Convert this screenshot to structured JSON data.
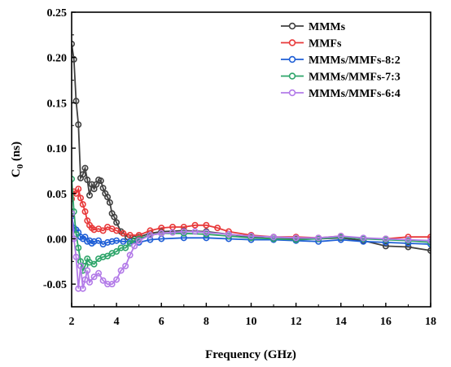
{
  "chart_data": {
    "type": "line",
    "title": "",
    "xlabel": "Frequency (GHz)",
    "ylabel_main": "C",
    "ylabel_sub": "0",
    "ylabel_unit": " (ns)",
    "xlim": [
      2,
      18
    ],
    "ylim": [
      -0.075,
      0.25
    ],
    "xticks": [
      "2",
      "4",
      "6",
      "8",
      "10",
      "12",
      "14",
      "16",
      "18"
    ],
    "yticks": [
      "-0.05",
      "0.00",
      "0.05",
      "0.10",
      "0.15",
      "0.20",
      "0.25"
    ],
    "grid": false,
    "legend_position": "top-right",
    "series": [
      {
        "name": "MMMs",
        "color": "#404040",
        "points": [
          [
            2.0,
            0.215
          ],
          [
            2.1,
            0.198
          ],
          [
            2.2,
            0.152
          ],
          [
            2.3,
            0.126
          ],
          [
            2.4,
            0.067
          ],
          [
            2.5,
            0.071
          ],
          [
            2.6,
            0.078
          ],
          [
            2.7,
            0.065
          ],
          [
            2.8,
            0.048
          ],
          [
            2.9,
            0.06
          ],
          [
            3.0,
            0.055
          ],
          [
            3.1,
            0.06
          ],
          [
            3.2,
            0.065
          ],
          [
            3.3,
            0.064
          ],
          [
            3.4,
            0.056
          ],
          [
            3.5,
            0.05
          ],
          [
            3.6,
            0.046
          ],
          [
            3.7,
            0.04
          ],
          [
            3.8,
            0.028
          ],
          [
            3.9,
            0.024
          ],
          [
            4.0,
            0.018
          ],
          [
            4.2,
            0.008
          ],
          [
            4.5,
            0.002
          ],
          [
            4.8,
            0.0
          ],
          [
            5.0,
            0.002
          ],
          [
            5.5,
            0.006
          ],
          [
            6.0,
            0.008
          ],
          [
            7.0,
            0.009
          ],
          [
            8.0,
            0.008
          ],
          [
            9.0,
            0.005
          ],
          [
            10.0,
            0.002
          ],
          [
            11.0,
            0.0
          ],
          [
            12.0,
            0.0
          ],
          [
            13.0,
            0.0
          ],
          [
            14.0,
            0.001
          ],
          [
            15.0,
            -0.002
          ],
          [
            16.0,
            -0.008
          ],
          [
            17.0,
            -0.009
          ],
          [
            18.0,
            -0.013
          ]
        ]
      },
      {
        "name": "MMFs",
        "color": "#e8393a",
        "points": [
          [
            2.0,
            0.044
          ],
          [
            2.1,
            0.052
          ],
          [
            2.2,
            0.05
          ],
          [
            2.3,
            0.055
          ],
          [
            2.4,
            0.045
          ],
          [
            2.5,
            0.038
          ],
          [
            2.6,
            0.03
          ],
          [
            2.7,
            0.02
          ],
          [
            2.8,
            0.015
          ],
          [
            2.9,
            0.012
          ],
          [
            3.0,
            0.01
          ],
          [
            3.2,
            0.011
          ],
          [
            3.4,
            0.009
          ],
          [
            3.6,
            0.013
          ],
          [
            3.8,
            0.011
          ],
          [
            4.0,
            0.009
          ],
          [
            4.3,
            0.006
          ],
          [
            4.6,
            0.004
          ],
          [
            5.0,
            0.004
          ],
          [
            5.5,
            0.009
          ],
          [
            6.0,
            0.012
          ],
          [
            6.5,
            0.013
          ],
          [
            7.0,
            0.013
          ],
          [
            7.5,
            0.015
          ],
          [
            8.0,
            0.015
          ],
          [
            8.5,
            0.012
          ],
          [
            9.0,
            0.008
          ],
          [
            10.0,
            0.004
          ],
          [
            11.0,
            0.002
          ],
          [
            12.0,
            0.002
          ],
          [
            13.0,
            0.001
          ],
          [
            14.0,
            0.003
          ],
          [
            15.0,
            0.0
          ],
          [
            16.0,
            0.0
          ],
          [
            17.0,
            0.002
          ],
          [
            18.0,
            0.002
          ]
        ]
      },
      {
        "name": "MMMs/MMFs-8:2",
        "color": "#1f5fd6",
        "points": [
          [
            2.0,
            0.025
          ],
          [
            2.1,
            0.012
          ],
          [
            2.2,
            0.01
          ],
          [
            2.3,
            0.007
          ],
          [
            2.4,
            0.002
          ],
          [
            2.5,
            0.0
          ],
          [
            2.6,
            0.002
          ],
          [
            2.7,
            -0.003
          ],
          [
            2.8,
            -0.002
          ],
          [
            2.9,
            -0.005
          ],
          [
            3.0,
            -0.003
          ],
          [
            3.2,
            -0.002
          ],
          [
            3.4,
            -0.006
          ],
          [
            3.6,
            -0.004
          ],
          [
            3.8,
            -0.003
          ],
          [
            4.0,
            -0.002
          ],
          [
            4.3,
            -0.003
          ],
          [
            4.6,
            -0.003
          ],
          [
            5.0,
            -0.004
          ],
          [
            5.5,
            -0.001
          ],
          [
            6.0,
            0.0
          ],
          [
            7.0,
            0.001
          ],
          [
            8.0,
            0.001
          ],
          [
            9.0,
            0.0
          ],
          [
            10.0,
            -0.001
          ],
          [
            11.0,
            -0.001
          ],
          [
            12.0,
            -0.002
          ],
          [
            13.0,
            -0.003
          ],
          [
            14.0,
            -0.001
          ],
          [
            15.0,
            -0.003
          ],
          [
            16.0,
            -0.004
          ],
          [
            17.0,
            -0.005
          ],
          [
            18.0,
            -0.006
          ]
        ]
      },
      {
        "name": "MMMs/MMFs-7:3",
        "color": "#2ea56a",
        "points": [
          [
            2.0,
            0.066
          ],
          [
            2.1,
            0.03
          ],
          [
            2.2,
            0.005
          ],
          [
            2.3,
            -0.01
          ],
          [
            2.4,
            -0.025
          ],
          [
            2.5,
            -0.035
          ],
          [
            2.6,
            -0.03
          ],
          [
            2.7,
            -0.022
          ],
          [
            2.8,
            -0.026
          ],
          [
            3.0,
            -0.028
          ],
          [
            3.2,
            -0.022
          ],
          [
            3.4,
            -0.02
          ],
          [
            3.6,
            -0.019
          ],
          [
            3.8,
            -0.016
          ],
          [
            4.0,
            -0.014
          ],
          [
            4.2,
            -0.01
          ],
          [
            4.4,
            -0.01
          ],
          [
            4.6,
            -0.005
          ],
          [
            4.8,
            -0.002
          ],
          [
            5.0,
            0.0
          ],
          [
            5.5,
            0.004
          ],
          [
            6.0,
            0.006
          ],
          [
            7.0,
            0.006
          ],
          [
            8.0,
            0.005
          ],
          [
            9.0,
            0.003
          ],
          [
            10.0,
            0.001
          ],
          [
            11.0,
            0.0
          ],
          [
            12.0,
            -0.001
          ],
          [
            13.0,
            0.0
          ],
          [
            14.0,
            0.002
          ],
          [
            15.0,
            0.0
          ],
          [
            16.0,
            -0.001
          ],
          [
            17.0,
            -0.002
          ],
          [
            18.0,
            -0.004
          ]
        ]
      },
      {
        "name": "MMMs/MMFs-6:4",
        "color": "#b37be8",
        "points": [
          [
            2.0,
            0.028
          ],
          [
            2.1,
            0.0
          ],
          [
            2.2,
            -0.02
          ],
          [
            2.3,
            -0.055
          ],
          [
            2.4,
            -0.03
          ],
          [
            2.5,
            -0.055
          ],
          [
            2.6,
            -0.045
          ],
          [
            2.7,
            -0.035
          ],
          [
            2.8,
            -0.048
          ],
          [
            3.0,
            -0.042
          ],
          [
            3.2,
            -0.038
          ],
          [
            3.4,
            -0.046
          ],
          [
            3.6,
            -0.05
          ],
          [
            3.8,
            -0.05
          ],
          [
            4.0,
            -0.045
          ],
          [
            4.2,
            -0.035
          ],
          [
            4.4,
            -0.03
          ],
          [
            4.6,
            -0.018
          ],
          [
            4.8,
            -0.008
          ],
          [
            5.0,
            -0.002
          ],
          [
            5.5,
            0.004
          ],
          [
            6.0,
            0.006
          ],
          [
            6.5,
            0.007
          ],
          [
            7.0,
            0.008
          ],
          [
            7.5,
            0.008
          ],
          [
            8.0,
            0.007
          ],
          [
            9.0,
            0.005
          ],
          [
            10.0,
            0.003
          ],
          [
            11.0,
            0.002
          ],
          [
            12.0,
            0.001
          ],
          [
            13.0,
            0.001
          ],
          [
            14.0,
            0.003
          ],
          [
            15.0,
            0.001
          ],
          [
            16.0,
            0.0
          ],
          [
            17.0,
            -0.001
          ],
          [
            18.0,
            -0.002
          ]
        ]
      }
    ]
  }
}
